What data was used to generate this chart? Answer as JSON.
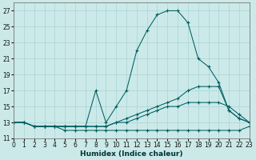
{
  "xlabel": "Humidex (Indice chaleur)",
  "bg_color": "#cce9e9",
  "grid_color": "#aad4d4",
  "line_color": "#005f5f",
  "xlim": [
    0,
    23
  ],
  "ylim": [
    11,
    28
  ],
  "yticks": [
    11,
    13,
    15,
    17,
    19,
    21,
    23,
    25,
    27
  ],
  "xticks": [
    0,
    1,
    2,
    3,
    4,
    5,
    6,
    7,
    8,
    9,
    10,
    11,
    12,
    13,
    14,
    15,
    16,
    17,
    18,
    19,
    20,
    21,
    22,
    23
  ],
  "series": [
    {
      "x": [
        0,
        1,
        2,
        3,
        4,
        5,
        6,
        7,
        8,
        9,
        10,
        11,
        12,
        13,
        14,
        15,
        16,
        17,
        18,
        19,
        20,
        21,
        22,
        23
      ],
      "y": [
        13,
        13,
        12.5,
        12.5,
        12.5,
        12.5,
        12.5,
        12.5,
        17,
        13,
        15,
        17,
        22,
        24.5,
        26.5,
        27,
        27,
        25.5,
        21,
        20,
        18,
        14.5,
        13.5,
        13
      ],
      "dashed": false
    },
    {
      "x": [
        0,
        1,
        2,
        3,
        4,
        5,
        6,
        7,
        8,
        9,
        10,
        11,
        12,
        13,
        14,
        15,
        16,
        17,
        18,
        19,
        20,
        21,
        22,
        23
      ],
      "y": [
        13,
        13,
        12.5,
        12.5,
        12.5,
        12.5,
        12.5,
        12.5,
        12.5,
        12.5,
        13,
        13.5,
        14,
        14.5,
        15,
        15.5,
        16,
        17,
        17.5,
        17.5,
        17.5,
        14.5,
        13.5,
        13
      ],
      "dashed": false
    },
    {
      "x": [
        0,
        1,
        2,
        3,
        4,
        5,
        6,
        7,
        8,
        9,
        10,
        11,
        12,
        13,
        14,
        15,
        16,
        17,
        18,
        19,
        20,
        21,
        22,
        23
      ],
      "y": [
        13,
        13,
        12.5,
        12.5,
        12.5,
        12.5,
        12.5,
        12.5,
        12.5,
        12.5,
        13,
        13,
        13.5,
        14,
        14.5,
        15,
        15,
        15.5,
        15.5,
        15.5,
        15.5,
        15,
        14,
        13
      ],
      "dashed": false
    },
    {
      "x": [
        0,
        1,
        2,
        3,
        4,
        5,
        6,
        7,
        8,
        9,
        10,
        11,
        12,
        13,
        14,
        15,
        16,
        17,
        18,
        19,
        20,
        21,
        22,
        23
      ],
      "y": [
        13,
        13,
        12.5,
        12.5,
        12.5,
        12,
        12,
        12,
        12,
        12,
        12,
        12,
        12,
        12,
        12,
        12,
        12,
        12,
        12,
        12,
        12,
        12,
        12,
        12.5
      ],
      "dashed": false
    }
  ]
}
